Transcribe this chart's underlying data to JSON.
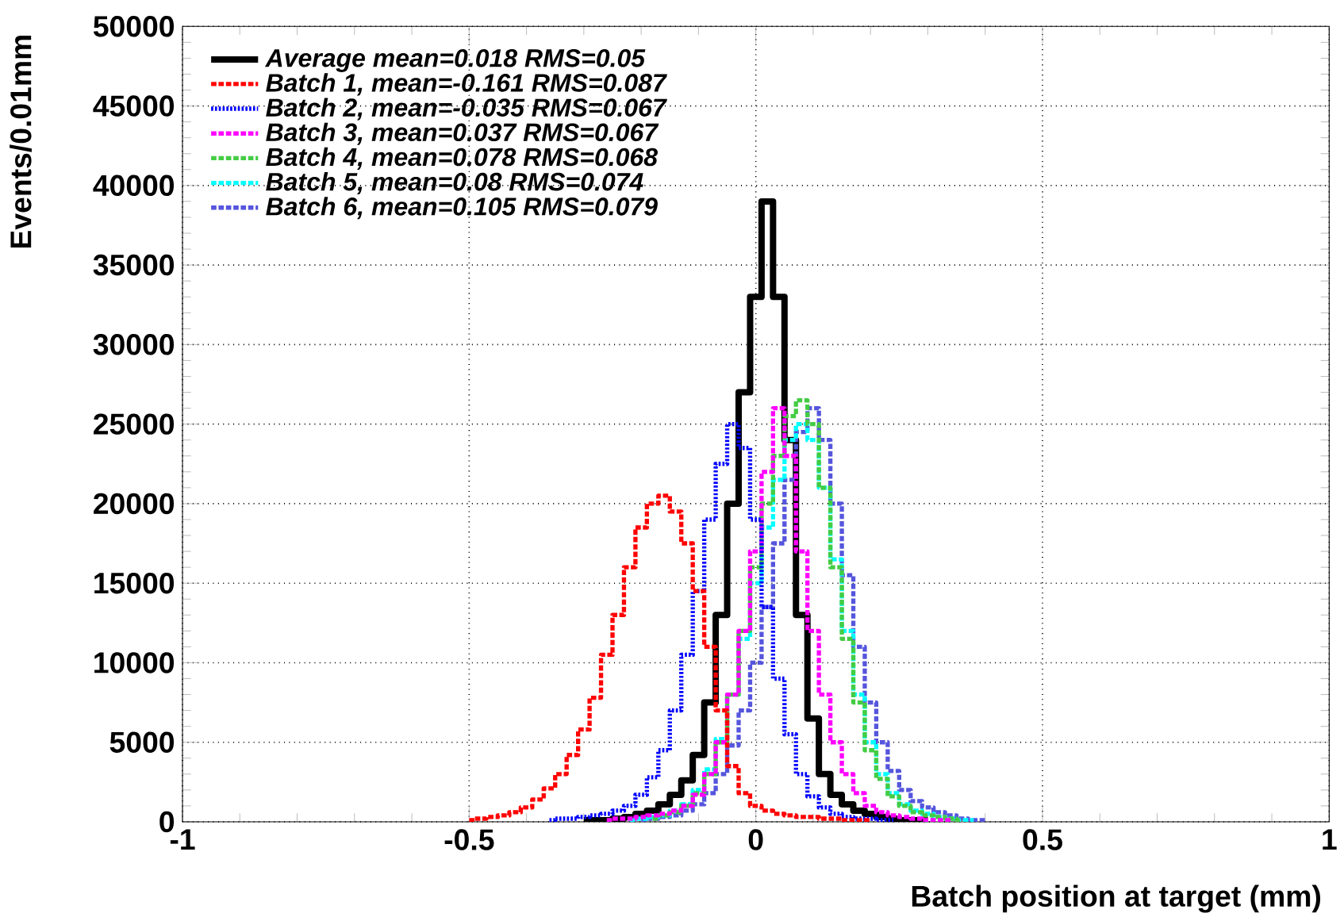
{
  "chart_data": {
    "type": "step",
    "xlabel": "Batch position at target (mm)",
    "ylabel": "Events/0.01mm",
    "xlim": [
      -1,
      1
    ],
    "xticks": [
      -1,
      -0.5,
      0,
      0.5,
      1
    ],
    "ylim": [
      0,
      50000
    ],
    "yticks": [
      0,
      5000,
      10000,
      15000,
      20000,
      25000,
      30000,
      35000,
      40000,
      45000,
      50000
    ],
    "grid": true,
    "legend": "top left",
    "series": [
      {
        "name": "Average mean=0.018 RMS=0.05",
        "color": "#000000",
        "line_style": "solid",
        "x": [
          -0.3,
          -0.28,
          -0.26,
          -0.24,
          -0.22,
          -0.2,
          -0.18,
          -0.16,
          -0.14,
          -0.12,
          -0.1,
          -0.08,
          -0.06,
          -0.04,
          -0.02,
          0,
          0.02,
          0.04,
          0.06,
          0.08,
          0.1,
          0.12,
          0.14,
          0.16,
          0.18,
          0.2,
          0.22,
          0.24,
          0.26,
          0.28,
          0.3
        ],
        "values": [
          100,
          100,
          100,
          200,
          300,
          500,
          700,
          1100,
          1700,
          2600,
          4200,
          7500,
          13000,
          20000,
          27000,
          33000,
          39000,
          33000,
          24000,
          13000,
          6500,
          3000,
          1700,
          1100,
          700,
          500,
          300,
          200,
          100,
          100,
          100
        ]
      },
      {
        "name": "Batch 1, mean=-0.161 RMS=0.087",
        "color": "#ff0000",
        "line_style": "dashed",
        "x": [
          -0.5,
          -0.48,
          -0.46,
          -0.44,
          -0.42,
          -0.4,
          -0.38,
          -0.36,
          -0.34,
          -0.32,
          -0.3,
          -0.28,
          -0.26,
          -0.24,
          -0.22,
          -0.2,
          -0.18,
          -0.16,
          -0.14,
          -0.12,
          -0.1,
          -0.08,
          -0.06,
          -0.04,
          -0.02,
          0,
          0.02,
          0.04,
          0.06,
          0.08,
          0.1,
          0.12,
          0.14,
          0.16,
          0.18,
          0.2
        ],
        "values": [
          100,
          200,
          300,
          400,
          600,
          900,
          1400,
          2100,
          3000,
          4200,
          5800,
          7800,
          10500,
          13000,
          16000,
          18500,
          20000,
          20500,
          19500,
          17500,
          14500,
          11000,
          7000,
          3500,
          1800,
          1000,
          700,
          500,
          400,
          300,
          300,
          200,
          200,
          100,
          100,
          100
        ]
      },
      {
        "name": "Batch 2, mean=-0.035 RMS=0.067",
        "color": "#0000ff",
        "line_style": "dotted",
        "x": [
          -0.36,
          -0.34,
          -0.32,
          -0.3,
          -0.28,
          -0.26,
          -0.24,
          -0.22,
          -0.2,
          -0.18,
          -0.16,
          -0.14,
          -0.12,
          -0.1,
          -0.08,
          -0.06,
          -0.04,
          -0.02,
          0,
          0.02,
          0.04,
          0.06,
          0.08,
          0.1,
          0.12,
          0.14,
          0.16,
          0.18,
          0.2,
          0.22,
          0.24
        ],
        "values": [
          100,
          200,
          200,
          300,
          400,
          500,
          700,
          1000,
          1700,
          2800,
          4500,
          7000,
          10500,
          14500,
          19000,
          22500,
          25000,
          23500,
          19000,
          13500,
          9000,
          5500,
          3000,
          1600,
          900,
          500,
          300,
          200,
          200,
          100,
          100
        ]
      },
      {
        "name": "Batch 3, mean=0.037 RMS=0.067",
        "color": "#ff00ff",
        "line_style": "dashed",
        "x": [
          -0.26,
          -0.24,
          -0.22,
          -0.2,
          -0.18,
          -0.16,
          -0.14,
          -0.12,
          -0.1,
          -0.08,
          -0.06,
          -0.04,
          -0.02,
          0,
          0.02,
          0.04,
          0.06,
          0.08,
          0.1,
          0.12,
          0.14,
          0.16,
          0.18,
          0.2,
          0.22,
          0.24,
          0.26,
          0.28,
          0.3,
          0.32,
          0.34
        ],
        "values": [
          100,
          200,
          200,
          300,
          400,
          500,
          700,
          1000,
          1700,
          3000,
          5000,
          8000,
          12000,
          17000,
          22000,
          26000,
          23000,
          17000,
          12000,
          8000,
          5000,
          3000,
          1800,
          1000,
          600,
          400,
          300,
          200,
          100,
          100,
          100
        ]
      },
      {
        "name": "Batch 4, mean=0.078 RMS=0.068",
        "color": "#44cc44",
        "line_style": "dashed",
        "x": [
          -0.18,
          -0.16,
          -0.14,
          -0.12,
          -0.1,
          -0.08,
          -0.06,
          -0.04,
          -0.02,
          0,
          0.02,
          0.04,
          0.06,
          0.08,
          0.1,
          0.12,
          0.14,
          0.16,
          0.18,
          0.2,
          0.22,
          0.24,
          0.26,
          0.28,
          0.3,
          0.32,
          0.34,
          0.36
        ],
        "values": [
          200,
          400,
          600,
          1000,
          1800,
          3000,
          5000,
          8000,
          12000,
          16000,
          20000,
          23000,
          25500,
          26500,
          25000,
          21000,
          16000,
          11500,
          7500,
          4500,
          2700,
          1600,
          1000,
          600,
          400,
          300,
          200,
          100
        ]
      },
      {
        "name": "Batch 5, mean=0.08 RMS=0.074",
        "color": "#00ffff",
        "line_style": "dashed",
        "x": [
          -0.22,
          -0.2,
          -0.18,
          -0.16,
          -0.14,
          -0.12,
          -0.1,
          -0.08,
          -0.06,
          -0.04,
          -0.02,
          0,
          0.02,
          0.04,
          0.06,
          0.08,
          0.1,
          0.12,
          0.14,
          0.16,
          0.18,
          0.2,
          0.22,
          0.24,
          0.26,
          0.28,
          0.3,
          0.32,
          0.34,
          0.36,
          0.38
        ],
        "values": [
          100,
          200,
          300,
          400,
          700,
          1100,
          2000,
          3300,
          5200,
          8000,
          11500,
          15000,
          18500,
          21500,
          24000,
          25000,
          24000,
          21000,
          16500,
          12000,
          8000,
          5000,
          3000,
          1800,
          1100,
          700,
          500,
          300,
          200,
          100,
          100
        ]
      },
      {
        "name": "Batch 6, mean=0.105 RMS=0.079",
        "color": "#5555dd",
        "line_style": "dashed",
        "x": [
          -0.2,
          -0.18,
          -0.16,
          -0.14,
          -0.12,
          -0.1,
          -0.08,
          -0.06,
          -0.04,
          -0.02,
          0,
          0.02,
          0.04,
          0.06,
          0.08,
          0.1,
          0.12,
          0.14,
          0.16,
          0.18,
          0.2,
          0.22,
          0.24,
          0.26,
          0.28,
          0.3,
          0.32,
          0.34,
          0.36,
          0.38,
          0.4
        ],
        "values": [
          100,
          200,
          300,
          400,
          700,
          1100,
          1800,
          3000,
          4800,
          7000,
          10000,
          13500,
          17500,
          21500,
          24500,
          26000,
          24000,
          20000,
          15500,
          11000,
          7500,
          5000,
          3200,
          2000,
          1300,
          900,
          600,
          400,
          200,
          100,
          100
        ]
      }
    ]
  }
}
